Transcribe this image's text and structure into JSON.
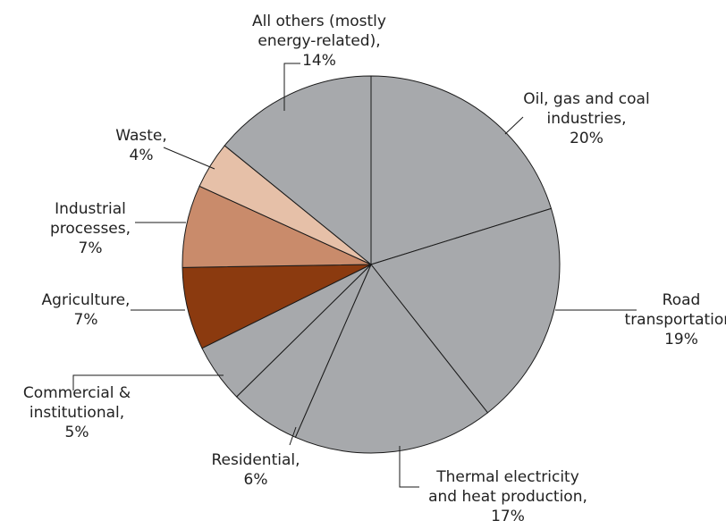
{
  "chart_data": {
    "type": "pie",
    "title": "",
    "start_angle_deg": 90,
    "direction": "clockwise",
    "slices": [
      {
        "label": "Oil, gas and coal industries",
        "value": 20,
        "color": "#a7a9ac",
        "label_lines": [
          "Oil, gas and coal",
          "industries,",
          "20%"
        ]
      },
      {
        "label": "Road transportation",
        "value": 19,
        "color": "#a7a9ac",
        "label_lines": [
          "Road",
          "transportation,",
          "19%"
        ]
      },
      {
        "label": "Thermal electricity and heat production",
        "value": 17,
        "color": "#a7a9ac",
        "label_lines": [
          "Thermal electricity",
          "and heat production,",
          "17%"
        ]
      },
      {
        "label": "Residential",
        "value": 6,
        "color": "#a7a9ac",
        "label_lines": [
          "Residential,",
          "6%"
        ]
      },
      {
        "label": "Commercial & institutional",
        "value": 5,
        "color": "#a7a9ac",
        "label_lines": [
          "Commercial &",
          "institutional,",
          "5%"
        ]
      },
      {
        "label": "Agriculture",
        "value": 7,
        "color": "#8b3a0f",
        "label_lines": [
          "Agriculture,",
          "7%"
        ]
      },
      {
        "label": "Industrial processes",
        "value": 7,
        "color": "#c98b6b",
        "label_lines": [
          "Industrial",
          "processes,",
          "7%"
        ]
      },
      {
        "label": "Waste",
        "value": 4,
        "color": "#e6c0a8",
        "label_lines": [
          "Waste,",
          "4%"
        ]
      },
      {
        "label": "All others (mostly energy-related)",
        "value": 14,
        "color": "#a7a9ac",
        "label_lines": [
          "All others (mostly",
          "energy-related),",
          "14%"
        ]
      }
    ]
  }
}
